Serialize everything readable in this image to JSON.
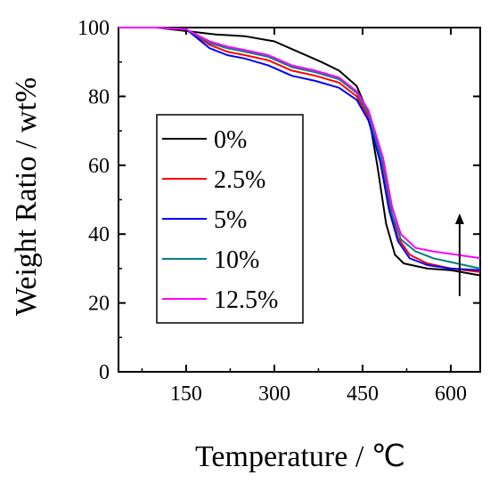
{
  "chart_data": {
    "type": "line",
    "xlabel": "Temperature / ℃",
    "ylabel": "Weight Ratio / wt%",
    "xlim": [
      35,
      650
    ],
    "ylim": [
      0,
      100
    ],
    "xticks": [
      150,
      300,
      450,
      600
    ],
    "yticks": [
      0,
      20,
      40,
      60,
      80,
      100
    ],
    "grid": false,
    "legend_position": "left",
    "annotation": "arrow-up",
    "annotation_x": 615,
    "annotation_y": [
      22,
      46
    ],
    "series": [
      {
        "name": "0%",
        "color": "#000000",
        "points": [
          [
            35,
            100
          ],
          [
            100,
            100
          ],
          [
            150,
            99
          ],
          [
            200,
            98
          ],
          [
            250,
            97.5
          ],
          [
            300,
            96
          ],
          [
            340,
            93
          ],
          [
            380,
            90
          ],
          [
            410,
            87.5
          ],
          [
            440,
            83
          ],
          [
            460,
            75
          ],
          [
            475,
            60
          ],
          [
            490,
            43
          ],
          [
            505,
            34
          ],
          [
            520,
            31.5
          ],
          [
            560,
            30
          ],
          [
            600,
            29.5
          ],
          [
            650,
            28
          ]
        ]
      },
      {
        "name": "2.5%",
        "color": "#ff0000",
        "points": [
          [
            35,
            100
          ],
          [
            100,
            100
          ],
          [
            150,
            99.5
          ],
          [
            190,
            95
          ],
          [
            220,
            93
          ],
          [
            250,
            92
          ],
          [
            290,
            90.5
          ],
          [
            330,
            87.5
          ],
          [
            370,
            86
          ],
          [
            410,
            84
          ],
          [
            440,
            80
          ],
          [
            460,
            74
          ],
          [
            480,
            62
          ],
          [
            495,
            48
          ],
          [
            510,
            39
          ],
          [
            530,
            34
          ],
          [
            560,
            31.5
          ],
          [
            600,
            30
          ],
          [
            650,
            29
          ]
        ]
      },
      {
        "name": "5%",
        "color": "#0000ff",
        "points": [
          [
            35,
            100
          ],
          [
            100,
            100
          ],
          [
            150,
            99.5
          ],
          [
            190,
            94
          ],
          [
            220,
            92
          ],
          [
            250,
            91
          ],
          [
            290,
            89
          ],
          [
            330,
            86
          ],
          [
            370,
            84.5
          ],
          [
            410,
            82.5
          ],
          [
            440,
            79
          ],
          [
            460,
            73
          ],
          [
            480,
            61
          ],
          [
            495,
            47
          ],
          [
            510,
            38
          ],
          [
            530,
            33
          ],
          [
            560,
            31
          ],
          [
            600,
            30
          ],
          [
            650,
            29.5
          ]
        ]
      },
      {
        "name": "10%",
        "color": "#008080",
        "points": [
          [
            35,
            100
          ],
          [
            100,
            100
          ],
          [
            150,
            99.5
          ],
          [
            190,
            95.5
          ],
          [
            220,
            94
          ],
          [
            250,
            93
          ],
          [
            290,
            91.5
          ],
          [
            330,
            88.5
          ],
          [
            370,
            87
          ],
          [
            410,
            85
          ],
          [
            440,
            81
          ],
          [
            460,
            75
          ],
          [
            485,
            60
          ],
          [
            500,
            46
          ],
          [
            515,
            38.5
          ],
          [
            540,
            35
          ],
          [
            570,
            33
          ],
          [
            610,
            31.5
          ],
          [
            650,
            30
          ]
        ]
      },
      {
        "name": "12.5%",
        "color": "#ff00ff",
        "points": [
          [
            35,
            100
          ],
          [
            100,
            100
          ],
          [
            150,
            99.5
          ],
          [
            190,
            96
          ],
          [
            220,
            94.5
          ],
          [
            250,
            93.5
          ],
          [
            290,
            92
          ],
          [
            330,
            89
          ],
          [
            370,
            87.5
          ],
          [
            410,
            85.5
          ],
          [
            440,
            81.5
          ],
          [
            460,
            76
          ],
          [
            485,
            62
          ],
          [
            500,
            48
          ],
          [
            515,
            40
          ],
          [
            540,
            36
          ],
          [
            570,
            35
          ],
          [
            610,
            34
          ],
          [
            650,
            33
          ]
        ]
      }
    ]
  }
}
